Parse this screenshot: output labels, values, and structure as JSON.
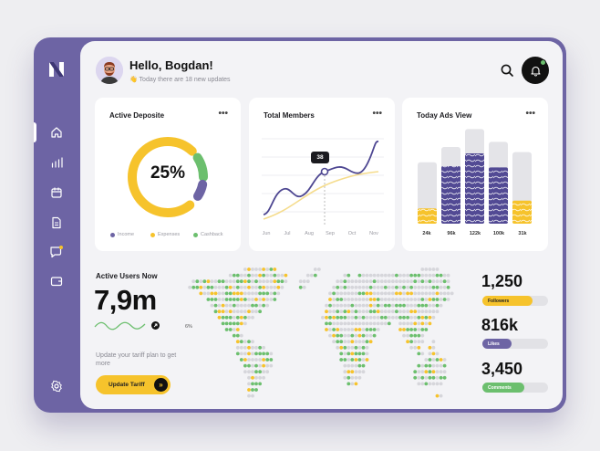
{
  "header": {
    "greeting": "Hello, Bogdan!",
    "subtitle": "Today there are 18 new updates",
    "subtitle_emoji": "👋"
  },
  "colors": {
    "purple": "#6d64a4",
    "yellow": "#f6c32c",
    "green": "#6cbf6e",
    "gray": "#d6d6db",
    "dark": "#1b1b1f"
  },
  "sidebar": {
    "icons": [
      "home-icon",
      "chart-icon",
      "calendar-icon",
      "document-icon",
      "chat-icon",
      "wallet-icon",
      "settings-icon"
    ]
  },
  "active_deposit": {
    "title": "Active Deposite",
    "menu": "•••",
    "value": "25%",
    "legend": [
      {
        "label": "Income",
        "color": "#6d64a4"
      },
      {
        "label": "Expenses",
        "color": "#f6c32c"
      },
      {
        "label": "Cashback",
        "color": "#6cbf6e"
      }
    ]
  },
  "total_members": {
    "title": "Total Members",
    "menu": "•••",
    "tooltip": "38",
    "months": [
      "Jun",
      "Jul",
      "Aug",
      "Sep",
      "Oct",
      "Nov"
    ]
  },
  "today_ads": {
    "title": "Today Ads View",
    "menu": "•••",
    "bars": [
      {
        "label": "24k",
        "fill": 0.12,
        "color": "#f6c32c"
      },
      {
        "label": "96k",
        "fill": 0.45,
        "color": "#6d64a4"
      },
      {
        "label": "122k",
        "fill": 0.55,
        "color": "#6d64a4"
      },
      {
        "label": "100k",
        "fill": 0.44,
        "color": "#6d64a4"
      },
      {
        "label": "31k",
        "fill": 0.18,
        "color": "#f6c32c"
      }
    ]
  },
  "active_users": {
    "title": "Active Users Now",
    "value": "7,9m",
    "change": "6%",
    "text": "Update your tariff plan to get more",
    "button": "Update Tariff",
    "button_icon": "»"
  },
  "stats": [
    {
      "value": "1,250",
      "label": "Followers",
      "color": "#f6c32c",
      "fill": 0.78
    },
    {
      "value": "816k",
      "label": "Likes",
      "color": "#6d64a4",
      "fill": 0.45
    },
    {
      "value": "3,450",
      "label": "Comments",
      "color": "#6cbf6e",
      "fill": 0.6
    }
  ]
}
